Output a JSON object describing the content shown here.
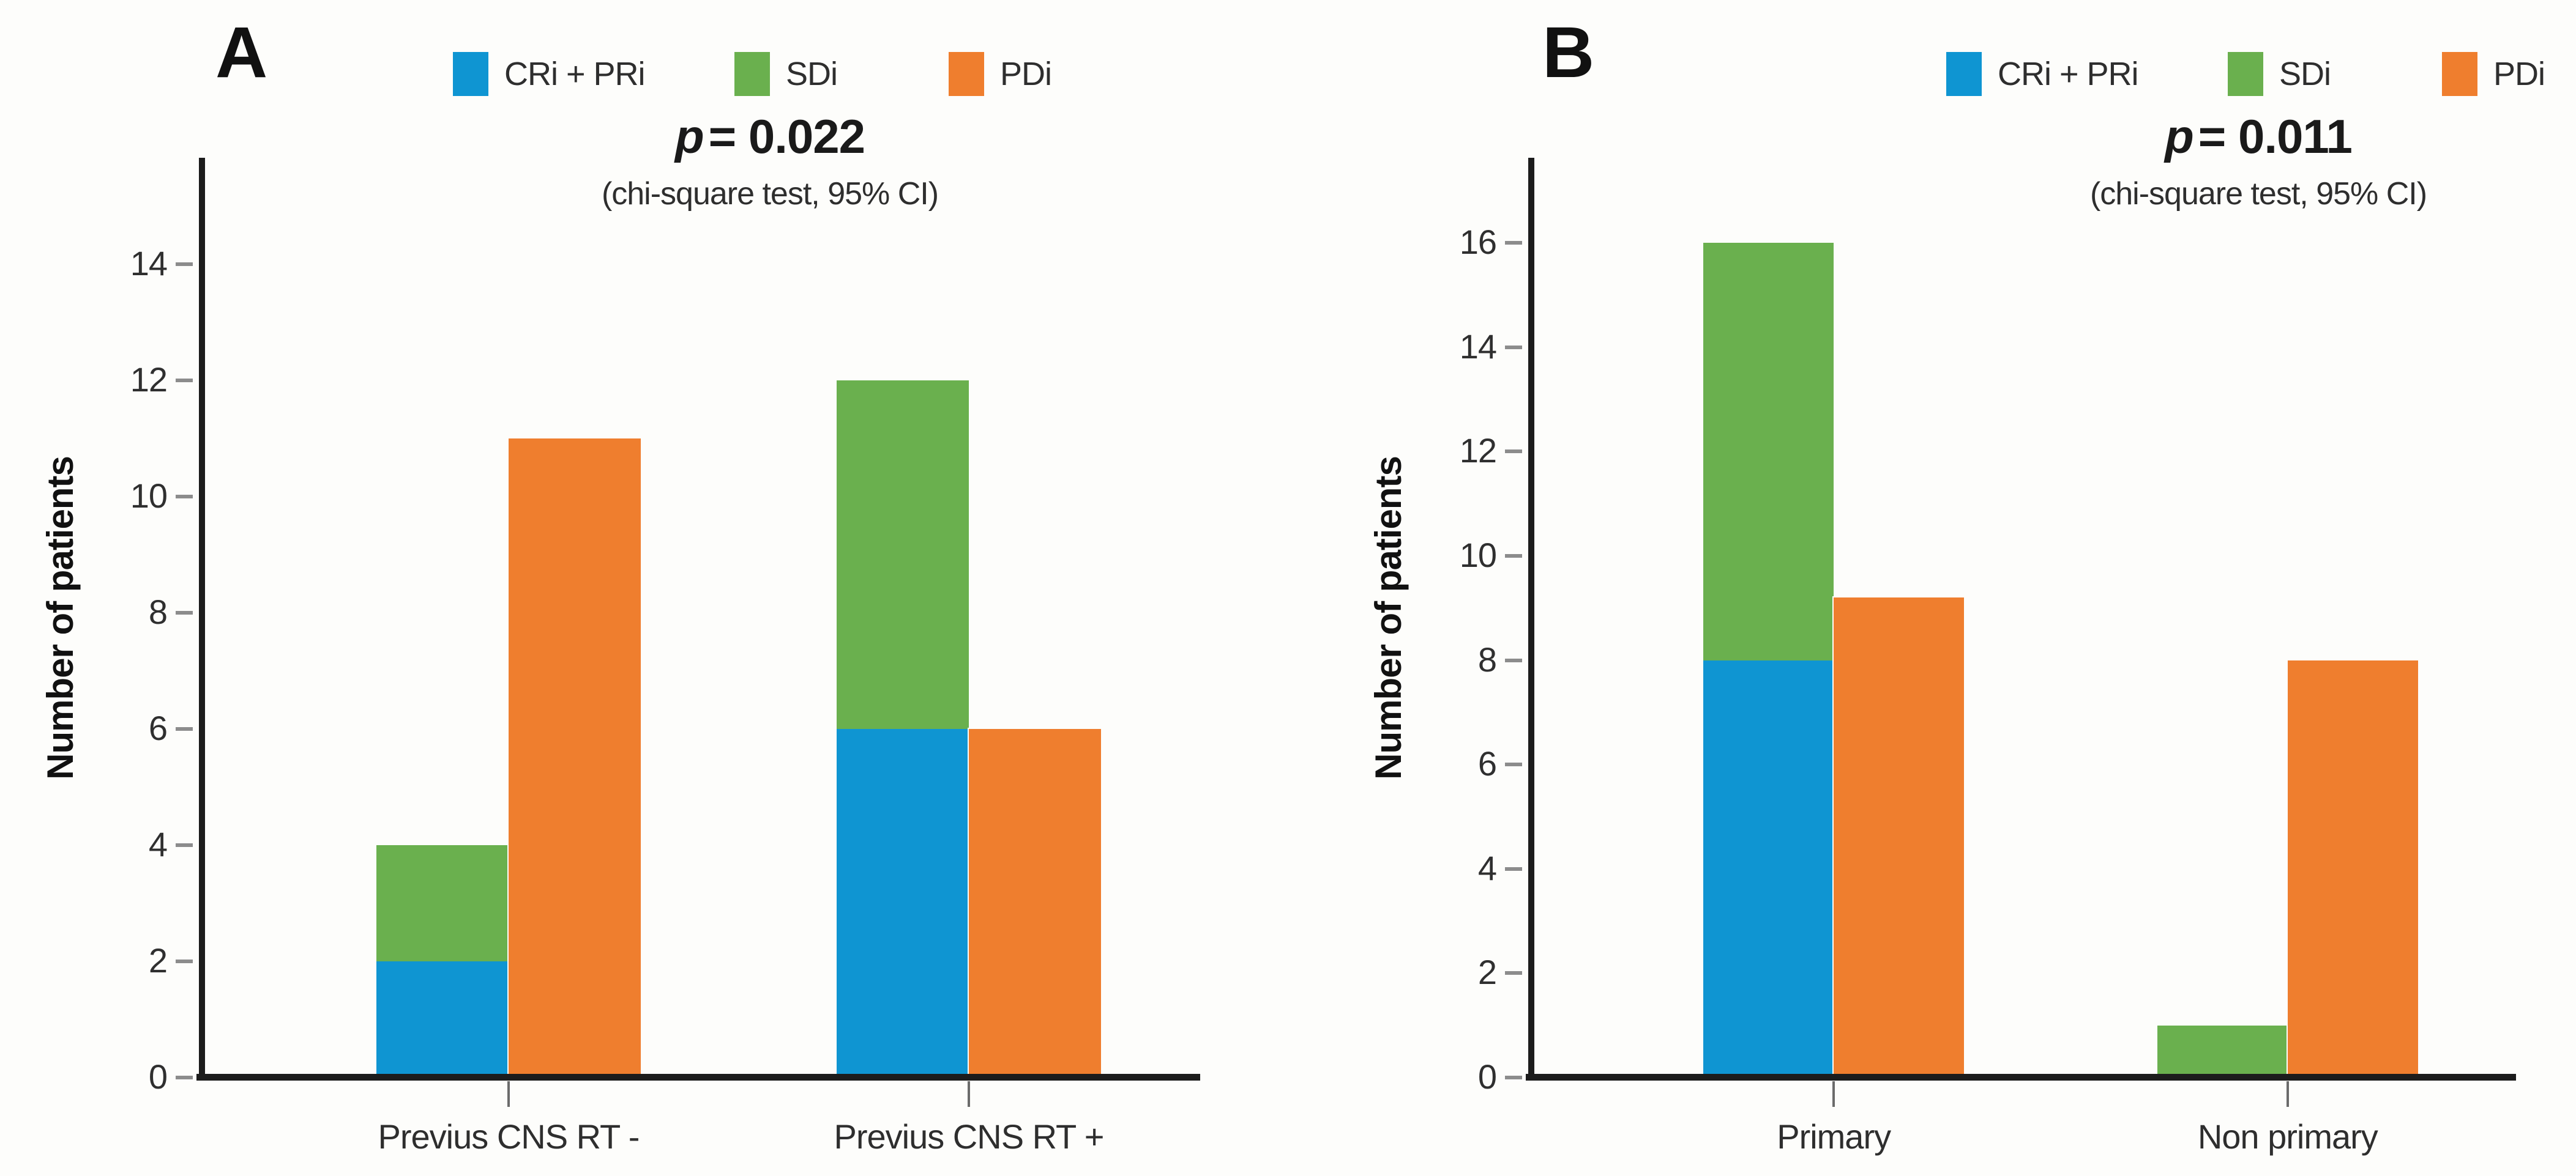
{
  "figure_note": "Two-panel stacked bar figure comparing treatment response categories",
  "chart_data": [
    {
      "panel_letter": "A",
      "type": "bar",
      "title": "p = 0.022",
      "p_label": "p",
      "p_value": "= 0.022",
      "subtitle": "(chi-square test, 95% CI)",
      "ylabel": "Number of patients",
      "xlabel": "",
      "categories": [
        "Previus CNS RT -",
        "Previus CNS RT +"
      ],
      "series": [
        {
          "name": "CRi + PRi",
          "color": "#0f95d2",
          "stack": "response",
          "values": [
            2,
            6
          ]
        },
        {
          "name": "SDi",
          "color": "#6ab04e",
          "stack": "response",
          "values": [
            2,
            6
          ]
        },
        {
          "name": "PDi",
          "color": "#ef7e2e",
          "stack": "none",
          "values": [
            11,
            6
          ]
        }
      ],
      "yticks": [
        0,
        2,
        4,
        6,
        8,
        10,
        12,
        14
      ],
      "ylim": [
        0,
        15.83
      ],
      "grid": false,
      "legend_position": "top"
    },
    {
      "panel_letter": "B",
      "type": "bar",
      "title": "p = 0.011",
      "p_label": "p",
      "p_value": "= 0.011",
      "subtitle": "(chi-square test, 95% CI)",
      "ylabel": "Number of patients",
      "xlabel": "",
      "categories": [
        "Primary",
        "Non primary"
      ],
      "series": [
        {
          "name": "CRi + PRi",
          "color": "#0f95d2",
          "stack": "response",
          "values": [
            8,
            0
          ]
        },
        {
          "name": "SDi",
          "color": "#6ab04e",
          "stack": "response",
          "values": [
            8,
            1
          ]
        },
        {
          "name": "PDi",
          "color": "#ef7e2e",
          "stack": "none",
          "values": [
            9.2,
            8
          ]
        }
      ],
      "yticks": [
        0,
        2,
        4,
        6,
        8,
        10,
        12,
        14,
        16
      ],
      "ylim": [
        0,
        17.63
      ],
      "grid": false,
      "legend_position": "top"
    }
  ]
}
